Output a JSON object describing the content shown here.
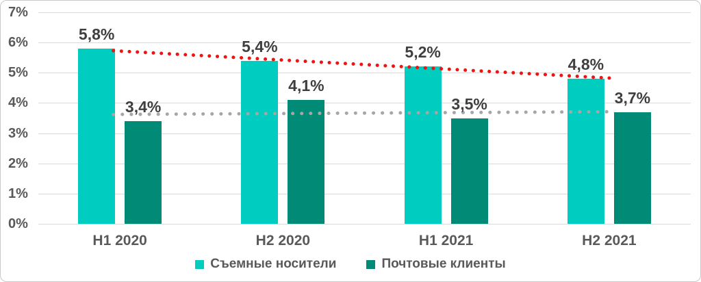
{
  "chart_data": {
    "type": "bar",
    "title": "",
    "categories": [
      "H1 2020",
      "H2 2020",
      "H1 2021",
      "H2 2021"
    ],
    "series": [
      {
        "name": "Съемные носители",
        "color": "#00CCC0",
        "values": [
          5.8,
          5.4,
          5.2,
          4.8
        ],
        "labels": [
          "5,8%",
          "5,4%",
          "5,2%",
          "4,8%"
        ]
      },
      {
        "name": "Почтовые клиенты",
        "color": "#018A75",
        "values": [
          3.4,
          4.1,
          3.5,
          3.7
        ],
        "labels": [
          "3,4%",
          "4,1%",
          "3,5%",
          "3,7%"
        ]
      }
    ],
    "y_axis": {
      "min": 0,
      "max": 7,
      "step": 1,
      "tick_labels": [
        "0%",
        "1%",
        "2%",
        "3%",
        "4%",
        "5%",
        "6%",
        "7%"
      ],
      "grid": true
    },
    "trendlines": [
      {
        "for_series": "Съемные носители",
        "style": "dotted",
        "color": "#ED1414",
        "start_value": 5.73,
        "end_value": 4.82
      },
      {
        "for_series": "Почтовые клиенты",
        "style": "dotted",
        "color": "#A6A6A6",
        "start_value": 3.62,
        "end_value": 3.71
      }
    ],
    "legend_position": "bottom",
    "colors": {
      "axis_text": "#595959",
      "data_label_text": "#3F3F3F",
      "gridline": "#D9D9D9"
    }
  }
}
